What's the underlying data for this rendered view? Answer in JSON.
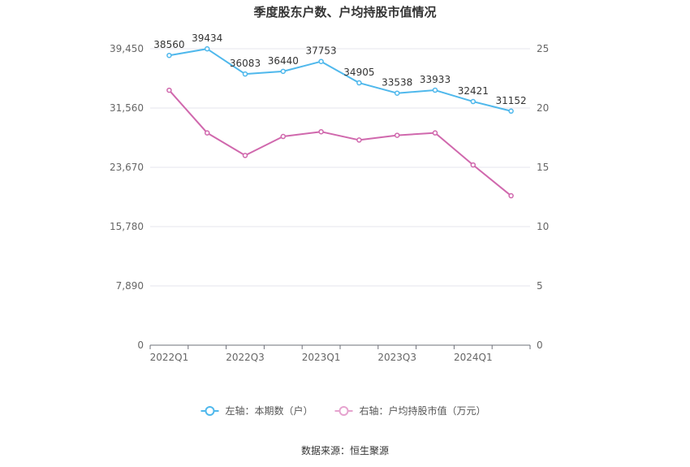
{
  "chart_data": {
    "type": "line",
    "title": "季度股东户数、户均持股市值情况",
    "categories": [
      "2022Q1",
      "2022Q2",
      "2022Q3",
      "2022Q4",
      "2023Q1",
      "2023Q2",
      "2023Q3",
      "2023Q4",
      "2024Q1",
      "2024Q2"
    ],
    "x_tick_labels": [
      "2022Q1",
      "2022Q3",
      "2023Q1",
      "2023Q3",
      "2024Q1"
    ],
    "left_axis": {
      "ylim": [
        0,
        39450
      ],
      "ticks": [
        0,
        7890,
        15780,
        23670,
        31560,
        39450
      ],
      "tick_labels": [
        "0",
        "7,890",
        "15,780",
        "23,670",
        "31,560",
        "39,450"
      ]
    },
    "right_axis": {
      "ylim": [
        0,
        25
      ],
      "ticks": [
        0,
        5,
        10,
        15,
        20,
        25
      ],
      "tick_labels": [
        "0",
        "5",
        "10",
        "15",
        "20",
        "25"
      ]
    },
    "series": [
      {
        "name": "左轴：本期数（户）",
        "axis": "left",
        "color": "#4fb8ec",
        "values": [
          38560,
          39434,
          36083,
          36440,
          37753,
          34905,
          33538,
          33933,
          32421,
          31152
        ],
        "labels": [
          "38560",
          "39434",
          "36083",
          "36440",
          "37753",
          "34905",
          "33538",
          "33933",
          "32421",
          "31152"
        ]
      },
      {
        "name": "右轴：户均持股市值（万元）",
        "axis": "right",
        "color": "#d068ad",
        "values": [
          21.5,
          17.9,
          16.0,
          17.6,
          18.0,
          17.3,
          17.7,
          17.9,
          15.2,
          12.6
        ]
      }
    ],
    "grid": true,
    "legend_position": "bottom-center"
  },
  "source": "数据来源：恒生聚源"
}
